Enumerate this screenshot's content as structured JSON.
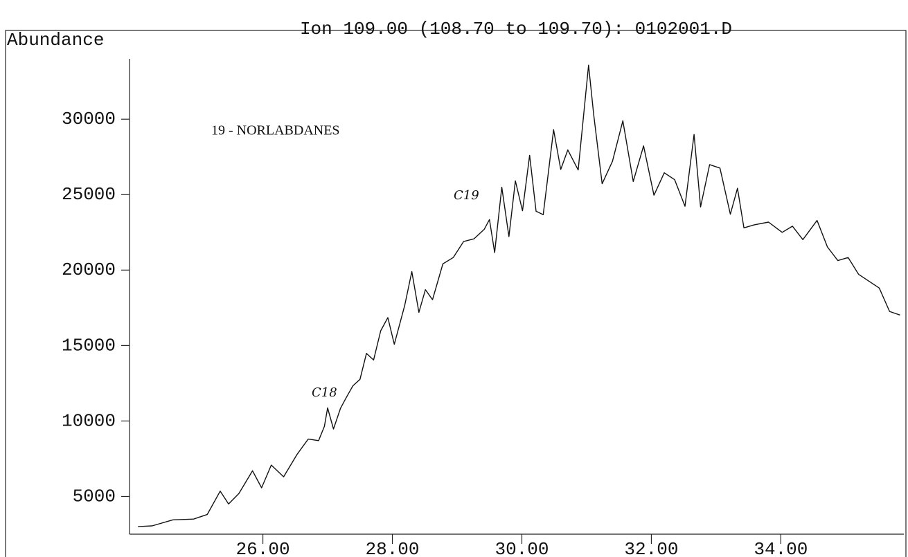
{
  "chart_data": {
    "type": "line",
    "title": "Ion 109.00 (108.70 to 109.70): 0102001.D",
    "ylabel": "Abundance",
    "annotations": [
      "19 - NORLABDANES",
      "C18",
      "C19"
    ],
    "color": "#111111",
    "xlim": [
      23.94,
      35.9
    ],
    "ylim": [
      2500,
      34000
    ],
    "xticks": [
      {
        "value": 26,
        "label": "26.00"
      },
      {
        "value": 28,
        "label": "28.00"
      },
      {
        "value": 30,
        "label": "30.00"
      },
      {
        "value": 32,
        "label": "32.00"
      },
      {
        "value": 34,
        "label": "34.00"
      }
    ],
    "yticks": [
      5000,
      10000,
      15000,
      20000,
      25000,
      30000
    ],
    "series": [
      {
        "name": "Ion 109",
        "color": "#111111",
        "x": [
          24.07,
          24.29,
          24.61,
          24.93,
          25.14,
          25.34,
          25.47,
          25.63,
          25.84,
          25.98,
          26.13,
          26.32,
          26.53,
          26.7,
          26.86,
          26.95,
          27.0,
          27.09,
          27.2,
          27.28,
          27.39,
          27.5,
          27.6,
          27.71,
          27.82,
          27.93,
          28.03,
          28.19,
          28.3,
          28.41,
          28.51,
          28.62,
          28.78,
          28.94,
          29.1,
          29.26,
          29.42,
          29.5,
          29.58,
          29.69,
          29.8,
          29.9,
          30.01,
          30.12,
          30.22,
          30.33,
          30.49,
          30.6,
          30.71,
          30.87,
          31.03,
          31.11,
          31.24,
          31.4,
          31.56,
          31.72,
          31.88,
          32.04,
          32.2,
          32.36,
          32.52,
          32.66,
          32.76,
          32.9,
          33.06,
          33.22,
          33.33,
          33.43,
          33.59,
          33.81,
          34.02,
          34.18,
          34.34,
          34.56,
          34.72,
          34.88,
          35.04,
          35.2,
          35.36,
          35.52,
          35.68,
          35.84
        ],
        "values": [
          3000,
          3050,
          3450,
          3500,
          3800,
          5350,
          4500,
          5200,
          6700,
          5570,
          7080,
          6300,
          7800,
          8800,
          8700,
          9650,
          10870,
          9470,
          10850,
          11490,
          12330,
          12760,
          14480,
          14040,
          15980,
          16850,
          15080,
          17650,
          19900,
          17200,
          18700,
          18040,
          20410,
          20830,
          21890,
          22070,
          22710,
          23350,
          21160,
          25490,
          22220,
          25910,
          23930,
          27610,
          23900,
          23670,
          29300,
          26670,
          27960,
          26630,
          33580,
          30300,
          25720,
          27210,
          29890,
          25870,
          28230,
          24960,
          26450,
          25990,
          24230,
          28990,
          24190,
          26990,
          26760,
          23700,
          25420,
          22800,
          23000,
          23180,
          22500,
          22910,
          22020,
          23290,
          21530,
          20630,
          20830,
          19720,
          19270,
          18810,
          17260,
          17020
        ]
      }
    ]
  }
}
